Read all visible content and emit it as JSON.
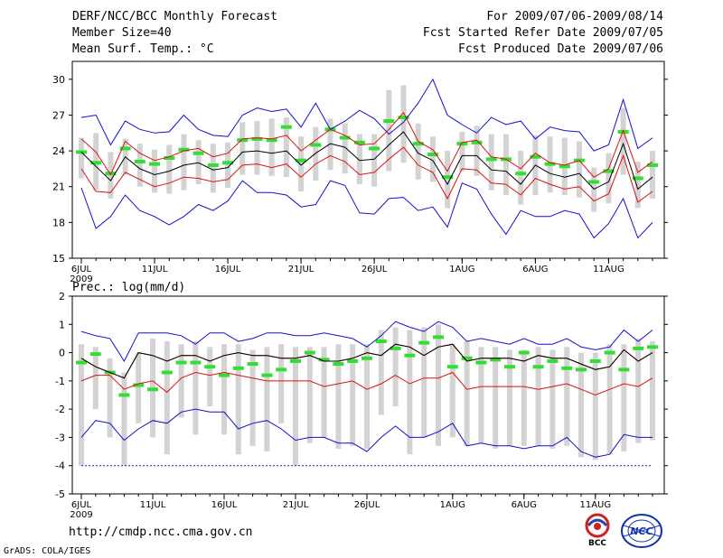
{
  "header": {
    "title": "DERF/NCC/BCC Monthly Forecast",
    "member_size": "Member Size=40",
    "period": "For 2009/07/06-2009/08/14",
    "fcst_started": "Fcst Started Refer Date 2009/07/05",
    "fcst_produced": "Fcst Produced Date 2009/07/06"
  },
  "footer": {
    "url": "http://cmdp.ncc.cma.gov.cn",
    "credit": "GrADS: COLA/IGES",
    "logo_bcc": "BCC",
    "logo_ncc": "NCC"
  },
  "colors": {
    "box": "#d3d3d3",
    "median": "#33dd33",
    "mean": "#000000",
    "std": "#dd1111",
    "extreme": "#1111cc"
  },
  "chart_data": [
    {
      "type": "line",
      "title": "Mean Surf. Temp.: °C",
      "ylim": [
        15,
        31.5
      ],
      "yticks": [
        15,
        18,
        21,
        24,
        27,
        30
      ],
      "xlim": [
        0,
        39
      ],
      "xticks": [
        {
          "day": 0,
          "label": "6JUL",
          "sub": "2009"
        },
        {
          "day": 5,
          "label": "11JUL"
        },
        {
          "day": 10,
          "label": "16JUL"
        },
        {
          "day": 15,
          "label": "21JUL"
        },
        {
          "day": 20,
          "label": "26JUL"
        },
        {
          "day": 26,
          "label": "1AUG"
        },
        {
          "day": 31,
          "label": "6AUG"
        },
        {
          "day": 36,
          "label": "11AUG"
        }
      ],
      "series": [
        {
          "name": "max",
          "values": [
            26.8,
            27.0,
            24.5,
            26.5,
            25.8,
            25.5,
            25.6,
            27.0,
            25.8,
            25.3,
            25.2,
            27.0,
            27.6,
            27.3,
            27.5,
            26.0,
            28.0,
            25.8,
            26.5,
            27.4,
            26.7,
            25.4,
            26.4,
            28.0,
            30.0,
            27.0,
            26.2,
            25.5,
            26.8,
            26.2,
            26.5,
            25.0,
            26.0,
            25.7,
            25.6,
            24.0,
            24.5,
            28.3,
            24.2,
            25.1
          ]
        },
        {
          "name": "plus_std",
          "values": [
            25.0,
            23.9,
            22.0,
            24.8,
            23.8,
            23.2,
            23.5,
            24.0,
            24.2,
            23.5,
            23.8,
            25.0,
            25.1,
            25.0,
            25.3,
            24.0,
            24.9,
            25.8,
            25.3,
            24.5,
            24.6,
            25.8,
            27.2,
            24.8,
            24.1,
            22.3,
            24.7,
            24.9,
            23.5,
            23.3,
            22.5,
            23.8,
            23.0,
            22.8,
            23.2,
            21.8,
            22.5,
            25.7,
            22.2,
            23.1
          ]
        },
        {
          "name": "mean",
          "values": [
            23.9,
            22.7,
            21.5,
            23.5,
            22.5,
            22.0,
            22.3,
            22.8,
            23.0,
            22.4,
            22.6,
            23.9,
            24.0,
            23.8,
            24.0,
            22.8,
            23.8,
            24.6,
            24.3,
            23.2,
            23.3,
            24.5,
            25.6,
            23.8,
            23.2,
            21.2,
            23.6,
            23.6,
            22.4,
            22.3,
            21.2,
            22.8,
            22.1,
            21.8,
            22.1,
            20.8,
            21.4,
            24.6,
            20.8,
            21.8
          ]
        },
        {
          "name": "minus_std",
          "values": [
            22.5,
            20.6,
            20.5,
            22.2,
            21.6,
            21.0,
            21.3,
            21.8,
            21.7,
            21.4,
            21.6,
            22.8,
            22.9,
            22.6,
            22.9,
            21.8,
            22.9,
            23.6,
            23.1,
            22.0,
            22.2,
            23.3,
            24.3,
            22.8,
            22.2,
            20.0,
            22.5,
            22.4,
            21.3,
            21.2,
            20.3,
            21.7,
            21.2,
            20.8,
            21.0,
            19.8,
            20.4,
            23.6,
            19.7,
            20.6
          ]
        },
        {
          "name": "min",
          "values": [
            20.9,
            17.5,
            18.5,
            20.3,
            19.0,
            18.5,
            17.8,
            18.5,
            19.5,
            19.0,
            19.8,
            21.5,
            20.5,
            20.5,
            20.3,
            19.3,
            19.5,
            21.5,
            21.1,
            18.8,
            18.7,
            20.0,
            20.1,
            19.0,
            19.3,
            17.6,
            21.3,
            20.8,
            18.7,
            17.0,
            19.0,
            18.5,
            18.5,
            19.0,
            18.7,
            16.7,
            17.9,
            20.0,
            16.7,
            18.0
          ]
        },
        {
          "name": "median",
          "values": [
            23.9,
            23.0,
            22.1,
            24.2,
            23.1,
            22.9,
            23.4,
            24.1,
            23.8,
            22.8,
            23.0,
            24.9,
            25.0,
            24.9,
            26.0,
            23.2,
            24.5,
            25.8,
            25.1,
            24.7,
            24.2,
            26.5,
            26.8,
            24.6,
            23.7,
            21.8,
            24.6,
            24.7,
            23.3,
            23.3,
            22.1,
            23.5,
            22.9,
            22.7,
            23.2,
            21.4,
            22.3,
            25.6,
            21.7,
            22.8
          ]
        },
        {
          "name": "box_high",
          "values": [
            25.1,
            25.5,
            23.9,
            25.0,
            24.6,
            24.1,
            24.5,
            25.4,
            24.9,
            24.6,
            24.7,
            26.4,
            26.5,
            26.7,
            26.8,
            25.2,
            26.0,
            26.7,
            26.3,
            25.4,
            25.4,
            29.1,
            29.5,
            26.3,
            25.2,
            24.0,
            25.6,
            26.1,
            25.4,
            25.4,
            24.0,
            25.3,
            25.2,
            25.1,
            24.8,
            22.6,
            23.8,
            27.6,
            23.1,
            24.0
          ]
        },
        {
          "name": "box_low",
          "values": [
            21.7,
            20.7,
            20.0,
            22.0,
            21.0,
            20.5,
            20.4,
            20.7,
            21.2,
            20.5,
            20.9,
            22.0,
            22.0,
            21.9,
            21.8,
            20.6,
            21.5,
            22.4,
            22.1,
            21.2,
            21.0,
            22.3,
            23.0,
            21.6,
            21.4,
            19.2,
            22.3,
            21.9,
            20.7,
            20.3,
            19.5,
            20.3,
            20.5,
            20.3,
            20.1,
            18.9,
            19.6,
            22.0,
            19.2,
            20.0
          ]
        }
      ]
    },
    {
      "type": "line",
      "title": "Prec.: log(mm/d)",
      "ylim": [
        -5,
        2
      ],
      "yticks": [
        -5,
        -4,
        -3,
        -2,
        -1,
        0,
        1,
        2
      ],
      "xlim": [
        0,
        39
      ],
      "xticks": [
        {
          "day": 0,
          "label": "6JUL",
          "sub": "2009"
        },
        {
          "day": 5,
          "label": "11JUL"
        },
        {
          "day": 10,
          "label": "16JUL"
        },
        {
          "day": 15,
          "label": "21JUL"
        },
        {
          "day": 20,
          "label": "26JUL"
        },
        {
          "day": 26,
          "label": "1AUG"
        },
        {
          "day": 31,
          "label": "6AUG"
        },
        {
          "day": 36,
          "label": "11AUG"
        }
      ],
      "series": [
        {
          "name": "max",
          "values": [
            0.75,
            0.6,
            0.5,
            -0.3,
            0.7,
            0.7,
            0.7,
            0.6,
            0.3,
            0.7,
            0.7,
            0.4,
            0.5,
            0.7,
            0.7,
            0.6,
            0.6,
            0.7,
            0.6,
            0.5,
            0.2,
            0.6,
            1.1,
            0.9,
            0.75,
            1.1,
            0.9,
            0.4,
            0.5,
            0.4,
            0.3,
            0.5,
            0.3,
            0.3,
            0.5,
            0.2,
            0.1,
            0.2,
            0.8,
            0.4,
            0.8
          ]
        },
        {
          "name": "plus_std",
          "values": [
            -0.2,
            -0.5,
            -0.7,
            -0.9,
            0.0,
            -0.1,
            -0.3,
            -0.1,
            -0.1,
            -0.3,
            -0.1,
            0.0,
            -0.1,
            -0.1,
            -0.2,
            -0.2,
            -0.1,
            -0.3,
            -0.3,
            -0.2,
            0.0,
            -0.1,
            0.3,
            0.2,
            -0.1,
            0.2,
            0.3,
            -0.3,
            -0.2,
            -0.2,
            -0.2,
            -0.3,
            -0.1,
            -0.2,
            -0.2,
            -0.4,
            -0.6,
            -0.5,
            0.1,
            -0.3,
            0.0
          ]
        },
        {
          "name": "mean",
          "values": [
            -0.2,
            -0.5,
            -0.7,
            -0.9,
            0.0,
            -0.1,
            -0.3,
            -0.1,
            -0.1,
            -0.3,
            -0.1,
            0.0,
            -0.1,
            -0.1,
            -0.2,
            -0.2,
            -0.1,
            -0.3,
            -0.3,
            -0.2,
            0.0,
            -0.1,
            0.3,
            0.2,
            -0.1,
            0.2,
            0.3,
            -0.3,
            -0.2,
            -0.2,
            -0.2,
            -0.3,
            -0.1,
            -0.2,
            -0.2,
            -0.4,
            -0.6,
            -0.5,
            0.1,
            -0.3,
            0.0
          ]
        },
        {
          "name": "minus_std",
          "values": [
            -1.0,
            -0.8,
            -0.8,
            -1.3,
            -1.1,
            -1.0,
            -1.4,
            -0.9,
            -0.7,
            -0.8,
            -0.7,
            -0.8,
            -0.9,
            -1.0,
            -1.0,
            -1.0,
            -1.0,
            -1.2,
            -1.1,
            -1.0,
            -1.3,
            -1.1,
            -0.8,
            -1.1,
            -0.9,
            -0.9,
            -0.7,
            -1.3,
            -1.2,
            -1.2,
            -1.2,
            -1.2,
            -1.3,
            -1.2,
            -1.1,
            -1.3,
            -1.5,
            -1.3,
            -1.1,
            -1.2,
            -0.9
          ]
        },
        {
          "name": "min",
          "values": [
            -3.0,
            -2.4,
            -2.5,
            -3.1,
            -2.7,
            -2.4,
            -2.5,
            -2.1,
            -2.0,
            -2.1,
            -2.1,
            -2.7,
            -2.5,
            -2.4,
            -2.7,
            -3.1,
            -3.0,
            -3.0,
            -3.2,
            -3.2,
            -3.5,
            -3.0,
            -2.6,
            -3.0,
            -3.0,
            -2.8,
            -2.5,
            -3.3,
            -3.2,
            -3.3,
            -3.3,
            -3.4,
            -3.3,
            -3.3,
            -3.0,
            -3.5,
            -3.7,
            -3.6,
            -2.9,
            -3.0,
            -3.0
          ]
        },
        {
          "name": "median",
          "values": [
            -0.35,
            -0.05,
            -0.7,
            -1.5,
            -1.15,
            -1.3,
            -0.7,
            -0.35,
            -0.35,
            -0.5,
            -0.8,
            -0.55,
            -0.4,
            -0.8,
            -0.6,
            -0.3,
            0.0,
            -0.25,
            -0.4,
            -0.3,
            -0.2,
            0.4,
            0.15,
            -0.1,
            0.35,
            0.55,
            -0.5,
            -0.2,
            -0.35,
            -0.25,
            -0.5,
            0.0,
            -0.5,
            -0.3,
            -0.55,
            -0.6,
            -0.3,
            0.0,
            -0.6,
            0.15,
            0.2
          ]
        },
        {
          "name": "box_high",
          "values": [
            0.3,
            0.2,
            -0.2,
            -0.7,
            0.0,
            0.5,
            0.4,
            0.3,
            0.4,
            0.2,
            0.3,
            0.3,
            0.1,
            0.2,
            0.3,
            0.2,
            0.2,
            0.2,
            0.3,
            0.3,
            0.3,
            0.8,
            0.9,
            0.8,
            0.9,
            1.0,
            0.3,
            0.4,
            0.2,
            0.2,
            0.1,
            0.1,
            0.2,
            0.1,
            0.2,
            0.0,
            0.0,
            0.3,
            0.3,
            0.5,
            0.4
          ]
        },
        {
          "name": "box_low",
          "values": [
            -4.0,
            -2.0,
            -3.0,
            -4.0,
            -2.5,
            -3.0,
            -3.6,
            -2.3,
            -2.9,
            -1.9,
            -2.9,
            -3.6,
            -3.3,
            -3.5,
            -2.5,
            -4.0,
            -3.2,
            -3.0,
            -3.4,
            -3.3,
            -3.4,
            -2.2,
            -1.9,
            -3.6,
            -3.0,
            -3.3,
            -3.0,
            -3.3,
            -3.2,
            -3.4,
            -3.3,
            -3.3,
            -3.3,
            -3.4,
            -3.3,
            -3.7,
            -3.8,
            -3.6,
            -3.5,
            -3.2,
            -3.1
          ]
        }
      ]
    }
  ]
}
